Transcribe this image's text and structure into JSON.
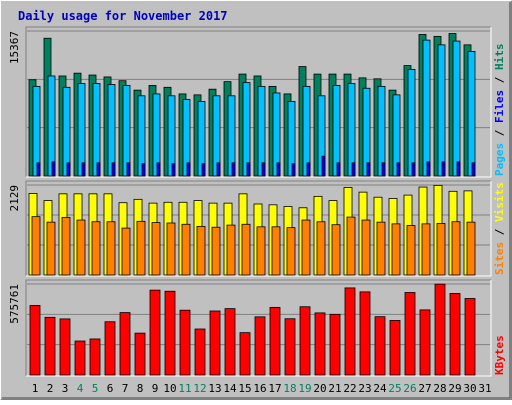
{
  "chart_data": {
    "type": "bar",
    "title": "Daily usage for November 2017",
    "categories": [
      "1",
      "2",
      "3",
      "4",
      "5",
      "6",
      "7",
      "8",
      "9",
      "10",
      "11",
      "12",
      "13",
      "14",
      "15",
      "16",
      "17",
      "18",
      "19",
      "20",
      "21",
      "22",
      "23",
      "24",
      "25",
      "26",
      "27",
      "28",
      "29",
      "30",
      "31"
    ],
    "weekend_days": [
      "4",
      "5",
      "11",
      "12",
      "18",
      "19",
      "25",
      "26"
    ],
    "panels": [
      {
        "id": "hits",
        "max_label": "15367",
        "ylim": [
          0,
          15367
        ],
        "legend": [
          {
            "name": "Hits",
            "color": "#00805c"
          },
          {
            "name": "Files",
            "color": "#0000ff"
          },
          {
            "name": "Pages",
            "color": "#00c0ff"
          }
        ],
        "series": [
          {
            "name": "Hits",
            "color": "#00805c",
            "values": [
              10200,
              14600,
              10600,
              10900,
              10700,
              10500,
              10100,
              9100,
              9600,
              9400,
              8700,
              8600,
              9200,
              10000,
              10800,
              10600,
              9500,
              8700,
              11600,
              10800,
              10800,
              10800,
              10400,
              10300,
              9100,
              11700,
              15000,
              14800,
              15100,
              13900,
              null
            ]
          },
          {
            "name": "Pages",
            "color": "#00c0ff",
            "values": [
              9500,
              10600,
              9400,
              9800,
              9800,
              9700,
              9600,
              8500,
              8700,
              8500,
              8100,
              7900,
              8500,
              8500,
              9900,
              9500,
              8800,
              7900,
              9500,
              8500,
              9600,
              9800,
              9300,
              9500,
              8600,
              11300,
              14400,
              13900,
              14300,
              13200,
              null
            ]
          },
          {
            "name": "Files",
            "color": "#0000ff",
            "values": [
              1400,
              1500,
              1400,
              1400,
              1400,
              1400,
              1400,
              1300,
              1400,
              1300,
              1400,
              1300,
              1400,
              1400,
              1400,
              1400,
              1400,
              1300,
              1400,
              2100,
              1400,
              1400,
              1400,
              1400,
              1400,
              1400,
              1500,
              1500,
              1500,
              1400,
              null
            ]
          }
        ]
      },
      {
        "id": "visits",
        "max_label": "2129",
        "ylim": [
          0,
          2129
        ],
        "legend": [
          {
            "name": "Visits",
            "color": "#ffff00"
          },
          {
            "name": "Sites",
            "color": "#ff8000"
          }
        ],
        "series": [
          {
            "name": "Visits",
            "color": "#ffff00",
            "values": [
              1930,
              1760,
              1920,
              1920,
              1920,
              1920,
              1710,
              1790,
              1700,
              1720,
              1720,
              1760,
              1700,
              1700,
              1920,
              1680,
              1660,
              1620,
              1590,
              1860,
              1760,
              2070,
              1960,
              1840,
              1810,
              1890,
              2080,
              2120,
              1980,
              1990,
              null
            ]
          },
          {
            "name": "Sites",
            "color": "#ff8000",
            "values": [
              1380,
              1250,
              1360,
              1300,
              1260,
              1260,
              1110,
              1270,
              1240,
              1230,
              1200,
              1150,
              1130,
              1180,
              1200,
              1140,
              1140,
              1120,
              1300,
              1260,
              1190,
              1370,
              1300,
              1250,
              1210,
              1170,
              1210,
              1220,
              1260,
              1250,
              null
            ]
          }
        ]
      },
      {
        "id": "kbytes",
        "max_label": "575761",
        "ylim": [
          0,
          575761
        ],
        "legend": [
          {
            "name": "KBytes",
            "color": "#ff0000"
          }
        ],
        "series": [
          {
            "name": "KBytes",
            "color": "#ff0000",
            "values": [
              440000,
              365000,
              355000,
              215000,
              228000,
              337000,
              395000,
              265000,
              537000,
              530000,
              410000,
              291000,
              405000,
              420000,
              268000,
              368000,
              428000,
              356000,
              432000,
              393000,
              384000,
              551000,
              526000,
              369000,
              345000,
              522000,
              412000,
              575000,
              516000,
              484000,
              null
            ]
          }
        ]
      }
    ],
    "colors": {
      "background": "#c0c0c0",
      "title": "#0000c0",
      "weekend_label": "#008060",
      "weekday_label": "#000000"
    }
  }
}
